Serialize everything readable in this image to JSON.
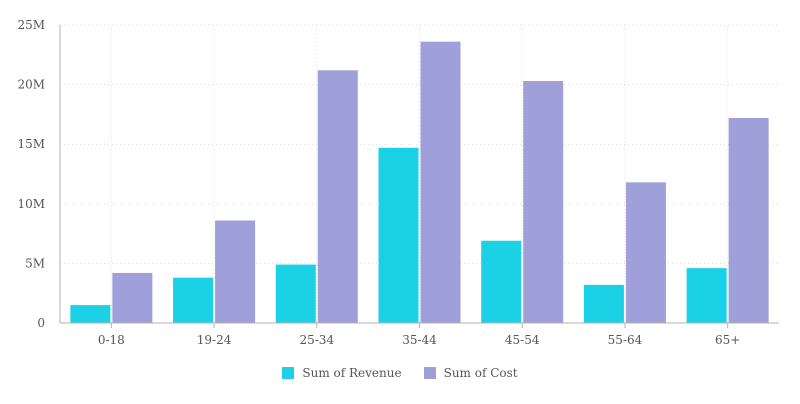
{
  "chart_data": {
    "type": "bar",
    "categories": [
      "0-18",
      "19-24",
      "25-34",
      "35-44",
      "45-54",
      "55-64",
      "65+"
    ],
    "series": [
      {
        "name": "Sum of Revenue",
        "color": "#1ad1e5",
        "values": [
          1.5,
          3.8,
          4.9,
          14.7,
          6.9,
          3.2,
          4.6
        ]
      },
      {
        "name": "Sum of Cost",
        "color": "#9f9fda",
        "values": [
          4.2,
          8.6,
          21.2,
          23.6,
          20.3,
          11.8,
          17.2
        ]
      }
    ],
    "value_unit": "millions",
    "yticks": [
      "0",
      "5M",
      "10M",
      "15M",
      "20M",
      "25M"
    ],
    "ylim": [
      0,
      25
    ],
    "grid": true,
    "legend_position": "bottom-center",
    "title": "",
    "xlabel": "",
    "ylabel": ""
  }
}
